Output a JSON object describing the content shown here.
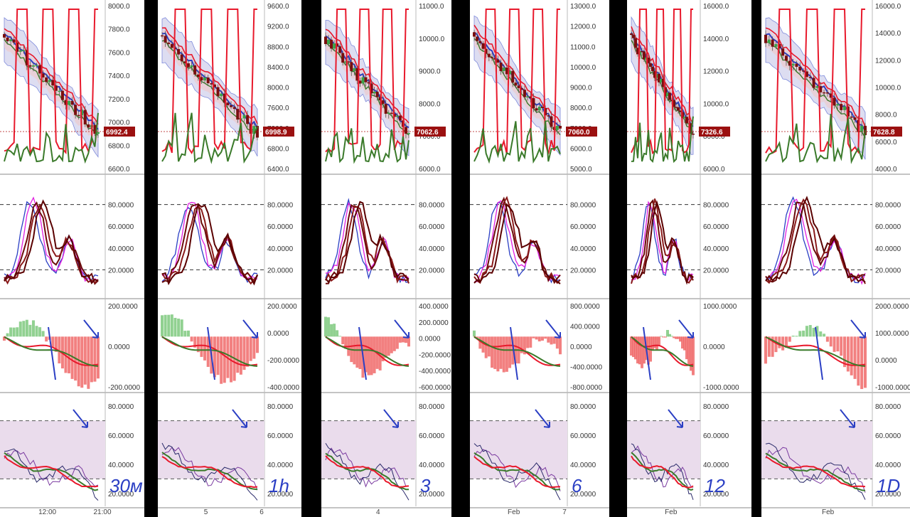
{
  "panels": [
    {
      "timeframe_label": "30м",
      "price_ticks": [
        "8000.0",
        "7800.0",
        "7600.0",
        "7400.0",
        "7200.0",
        "7000.0",
        "6800.0",
        "6600.0"
      ],
      "last_price": "6992.4",
      "stoch_ticks": [
        "80.0000",
        "60.0000",
        "40.0000",
        "20.0000"
      ],
      "macd_ticks": [
        "200.0000",
        "0.0000",
        "-200.0000"
      ],
      "rsi_ticks": [
        "80.0000",
        "60.0000",
        "40.0000",
        "20.0000"
      ],
      "x_ticks": [
        "12:00",
        "21:00"
      ]
    },
    {
      "timeframe_label": "1h",
      "price_ticks": [
        "9600.0",
        "9200.0",
        "8800.0",
        "8400.0",
        "8000.0",
        "7600.0",
        "7200.0",
        "6800.0",
        "6400.0"
      ],
      "last_price": "6998.9",
      "stoch_ticks": [
        "80.0000",
        "60.0000",
        "40.0000",
        "20.0000"
      ],
      "macd_ticks": [
        "200.0000",
        "0.0000",
        "-200.0000",
        "-400.0000"
      ],
      "rsi_ticks": [
        "80.0000",
        "60.0000",
        "40.0000",
        "20.0000"
      ],
      "x_ticks": [
        "5",
        "6"
      ]
    },
    {
      "timeframe_label": "3",
      "price_ticks": [
        "11000.0",
        "10000.0",
        "9000.0",
        "8000.0",
        "7000.0",
        "6000.0"
      ],
      "last_price": "7062.6",
      "stoch_ticks": [
        "80.0000",
        "60.0000",
        "40.0000",
        "20.0000"
      ],
      "macd_ticks": [
        "400.0000",
        "200.0000",
        "0.0000",
        "-200.0000",
        "-400.0000",
        "-600.0000"
      ],
      "rsi_ticks": [
        "80.0000",
        "60.0000",
        "40.0000",
        "20.0000"
      ],
      "x_ticks": [
        "4"
      ]
    },
    {
      "timeframe_label": "6",
      "price_ticks": [
        "13000.0",
        "12000.0",
        "11000.0",
        "10000.0",
        "9000.0",
        "8000.0",
        "7000.0",
        "6000.0",
        "5000.0"
      ],
      "last_price": "7060.0",
      "stoch_ticks": [
        "80.0000",
        "60.0000",
        "40.0000",
        "20.0000"
      ],
      "macd_ticks": [
        "800.0000",
        "400.0000",
        "0.0000",
        "-400.0000",
        "-800.0000"
      ],
      "rsi_ticks": [
        "80.0000",
        "60.0000",
        "40.0000",
        "20.0000"
      ],
      "x_ticks": [
        "Feb",
        "7"
      ]
    },
    {
      "timeframe_label": "12",
      "price_ticks": [
        "16000.0",
        "14000.0",
        "12000.0",
        "10000.0",
        "8000.0",
        "6000.0"
      ],
      "last_price": "7326.6",
      "stoch_ticks": [
        "80.0000",
        "60.0000",
        "40.0000",
        "20.0000"
      ],
      "macd_ticks": [
        "1000.0000",
        "0.0000",
        "-1000.0000"
      ],
      "rsi_ticks": [
        "80.0000",
        "60.0000",
        "40.0000",
        "20.0000"
      ],
      "x_ticks": [
        "Feb"
      ]
    },
    {
      "timeframe_label": "1D",
      "price_ticks": [
        "16000.0",
        "14000.0",
        "12000.0",
        "10000.0",
        "8000.0",
        "6000.0",
        "4000.0"
      ],
      "last_price": "7628.8",
      "stoch_ticks": [
        "80.0000",
        "60.0000",
        "40.0000",
        "20.0000"
      ],
      "macd_ticks": [
        "2000.0000",
        "1000.0000",
        "0.0000",
        "-1000.0000"
      ],
      "rsi_ticks": [
        "80.0000",
        "60.0000",
        "40.0000",
        "20.0000"
      ],
      "x_ticks": [
        "Feb"
      ]
    }
  ],
  "colors": {
    "candle": "#7a0f0f",
    "ma_red": "#e8192c",
    "ma_blue": "#2b3fc4",
    "ma_green": "#3a7a2a",
    "band_fill": "#c8c8e8",
    "band_fill_red": "#f0c8c8",
    "badge": "#9b1010",
    "hist_pos": "#7ec97e",
    "hist_neg": "#f06a6a",
    "rsi_zone": "#eadcec",
    "annotation": "#2b3fc4"
  },
  "chart_data": {
    "type": "multi-panel financial chart",
    "panels": [
      {
        "timeframe": "30м",
        "last_price": 6992.4,
        "price_ylim": [
          6600,
          8000
        ],
        "stoch_levels": [
          20,
          80
        ],
        "rsi_levels": [
          30,
          70
        ],
        "macd_ylim": [
          -200,
          200
        ]
      },
      {
        "timeframe": "1h",
        "last_price": 6998.9,
        "price_ylim": [
          6400,
          9600
        ],
        "stoch_levels": [
          20,
          80
        ],
        "rsi_levels": [
          30,
          70
        ],
        "macd_ylim": [
          -400,
          200
        ]
      },
      {
        "timeframe": "3",
        "last_price": 7062.6,
        "price_ylim": [
          6000,
          11000
        ],
        "stoch_levels": [
          20,
          80
        ],
        "rsi_levels": [
          30,
          70
        ],
        "macd_ylim": [
          -600,
          400
        ]
      },
      {
        "timeframe": "6",
        "last_price": 7060.0,
        "price_ylim": [
          5000,
          13000
        ],
        "stoch_levels": [
          20,
          80
        ],
        "rsi_levels": [
          30,
          70
        ],
        "macd_ylim": [
          -800,
          800
        ]
      },
      {
        "timeframe": "12",
        "last_price": 7326.6,
        "price_ylim": [
          6000,
          16000
        ],
        "stoch_levels": [
          20,
          80
        ],
        "rsi_levels": [
          30,
          70
        ],
        "macd_ylim": [
          -1000,
          1000
        ]
      },
      {
        "timeframe": "1D",
        "last_price": 7628.8,
        "price_ylim": [
          4000,
          16000
        ],
        "stoch_levels": [
          20,
          80
        ],
        "rsi_levels": [
          30,
          70
        ],
        "macd_ylim": [
          -1000,
          2000
        ]
      }
    ]
  }
}
